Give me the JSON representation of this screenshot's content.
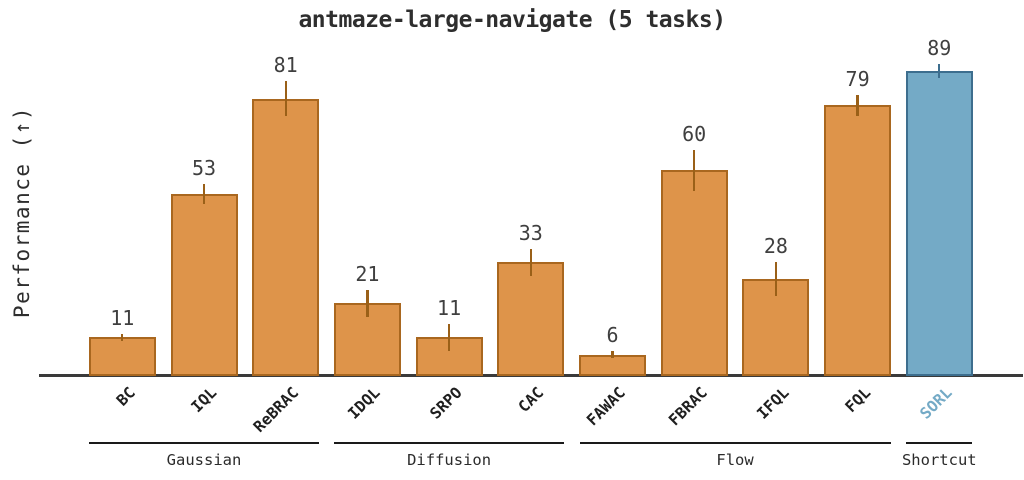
{
  "title": "antmaze-large-navigate (5 tasks)",
  "ylabel": "Performance (↑)",
  "colors": {
    "bar_fill": "#de944a",
    "bar_edge": "#a9671f",
    "bar_err": "#9a6018",
    "highlight_fill": "#74aac6",
    "highlight_edge": "#3d6e8e",
    "highlight_err": "#3d6e8e",
    "highlight_label": "#74aac6",
    "axis": "#3a3a3a",
    "value_text": "#3f3f3f"
  },
  "chart_data": {
    "type": "bar",
    "title": "antmaze-large-navigate (5 tasks)",
    "xlabel": "",
    "ylabel": "Performance (↑)",
    "ylim": [
      0,
      96
    ],
    "grid": false,
    "legend": "none",
    "categories": [
      "BC",
      "IQL",
      "ReBRAC",
      "IDQL",
      "SRPO",
      "CAC",
      "FAWAC",
      "FBRAC",
      "IFQL",
      "FQL",
      "SORL"
    ],
    "values": [
      11,
      53,
      81,
      21,
      11,
      33,
      6,
      60,
      28,
      79,
      89
    ],
    "errors": [
      1,
      3,
      5,
      4,
      4,
      4,
      1,
      6,
      5,
      3,
      2
    ],
    "value_labels": [
      "11",
      "53",
      "81",
      "21",
      "11",
      "33",
      "6",
      "60",
      "28",
      "79",
      "89"
    ],
    "highlight_index": 10,
    "highlight_category": "SORL",
    "groups": [
      {
        "label": "Gaussian",
        "members": [
          "BC",
          "IQL",
          "ReBRAC"
        ],
        "start": 0,
        "end": 2
      },
      {
        "label": "Diffusion",
        "members": [
          "IDQL",
          "SRPO",
          "CAC"
        ],
        "start": 3,
        "end": 5
      },
      {
        "label": "Flow",
        "members": [
          "FAWAC",
          "FBRAC",
          "IFQL",
          "FQL"
        ],
        "start": 6,
        "end": 9
      },
      {
        "label": "Shortcut",
        "members": [
          "SORL"
        ],
        "start": 10,
        "end": 10
      }
    ]
  }
}
